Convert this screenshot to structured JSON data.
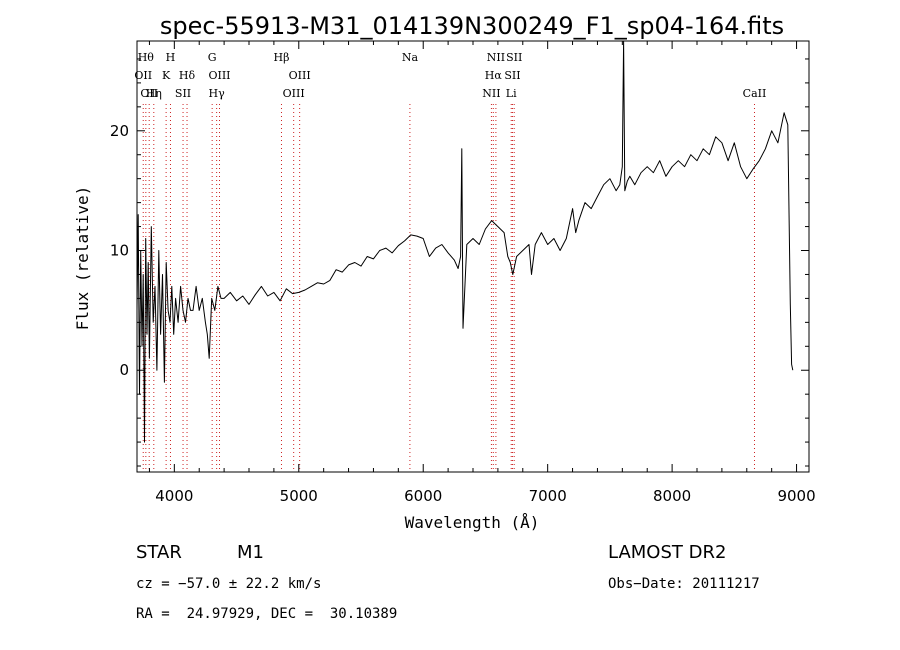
{
  "chart_data": {
    "type": "line",
    "title": "spec-55913-M31_014139N300249_F1_sp04-164.fits",
    "xlabel": "Wavelength (Å)",
    "ylabel": "Flux (relative)",
    "xlim": [
      3700,
      9100
    ],
    "ylim": [
      -8.5,
      27.5
    ],
    "x_ticks": [
      4000,
      5000,
      6000,
      7000,
      8000,
      9000
    ],
    "x_tick_labels": [
      "4000",
      "5000",
      "6000",
      "7000",
      "8000",
      "9000"
    ],
    "y_ticks": [
      0,
      10,
      20
    ],
    "y_tick_labels": [
      "0",
      "10",
      "20"
    ],
    "grid": false,
    "colors": {
      "spectrum": "#000000",
      "line_markers": "#cc2222",
      "axes": "#000000"
    },
    "spectral_lines": [
      {
        "wavelength": 3750,
        "label": "OII",
        "row": 2
      },
      {
        "wavelength": 3771,
        "label": "Hθ",
        "row": 1
      },
      {
        "wavelength": 3798,
        "label": "OII",
        "row": 3
      },
      {
        "wavelength": 3835,
        "label": "Hη",
        "row": 3
      },
      {
        "wavelength": 3934,
        "label": "K",
        "row": 2
      },
      {
        "wavelength": 3969,
        "label": "H",
        "row": 1
      },
      {
        "wavelength": 4070,
        "label": "SII",
        "row": 3
      },
      {
        "wavelength": 4102,
        "label": "Hδ",
        "row": 2
      },
      {
        "wavelength": 4304,
        "label": "G",
        "row": 1
      },
      {
        "wavelength": 4340,
        "label": "Hγ",
        "row": 3
      },
      {
        "wavelength": 4363,
        "label": "OIII",
        "row": 2
      },
      {
        "wavelength": 4861,
        "label": "Hβ",
        "row": 1
      },
      {
        "wavelength": 4959,
        "label": "OIII",
        "row": 3
      },
      {
        "wavelength": 5007,
        "label": "OIII",
        "row": 2
      },
      {
        "wavelength": 5893,
        "label": "Na",
        "row": 1
      },
      {
        "wavelength": 6548,
        "label": "NII",
        "row": 3
      },
      {
        "wavelength": 6563,
        "label": "Hα",
        "row": 2
      },
      {
        "wavelength": 6584,
        "label": "NII",
        "row": 1
      },
      {
        "wavelength": 6707,
        "label": "Li",
        "row": 3
      },
      {
        "wavelength": 6717,
        "label": "SII",
        "row": 2
      },
      {
        "wavelength": 6731,
        "label": "SII",
        "row": 1
      },
      {
        "wavelength": 8662,
        "label": "CaII",
        "row": 3
      }
    ],
    "series": [
      {
        "x": [
          3700,
          3710,
          3720,
          3730,
          3740,
          3750,
          3760,
          3770,
          3780,
          3790,
          3800,
          3815,
          3830,
          3845,
          3860,
          3875,
          3890,
          3905,
          3920,
          3935,
          3950,
          3965,
          3980,
          3995,
          4010,
          4030,
          4050,
          4070,
          4090,
          4110,
          4130,
          4150,
          4175,
          4200,
          4225,
          4250,
          4265,
          4280,
          4300,
          4325,
          4350,
          4375,
          4400,
          4450,
          4500,
          4550,
          4600,
          4650,
          4700,
          4750,
          4800,
          4850,
          4900,
          4950,
          5000,
          5050,
          5100,
          5150,
          5200,
          5250,
          5300,
          5350,
          5400,
          5450,
          5500,
          5550,
          5600,
          5650,
          5700,
          5750,
          5800,
          5850,
          5900,
          5950,
          6000,
          6050,
          6100,
          6150,
          6200,
          6250,
          6280,
          6300,
          6310,
          6320,
          6350,
          6400,
          6450,
          6500,
          6550,
          6600,
          6650,
          6680,
          6700,
          6720,
          6750,
          6800,
          6850,
          6870,
          6900,
          6950,
          7000,
          7050,
          7100,
          7150,
          7200,
          7225,
          7250,
          7300,
          7350,
          7400,
          7450,
          7500,
          7550,
          7580,
          7600,
          7610,
          7620,
          7640,
          7660,
          7700,
          7750,
          7800,
          7850,
          7900,
          7950,
          8000,
          8050,
          8100,
          8150,
          8200,
          8250,
          8300,
          8350,
          8400,
          8450,
          8500,
          8550,
          8600,
          8650,
          8700,
          8750,
          8800,
          8850,
          8900,
          8930,
          8950,
          8960,
          8970
        ],
        "y": [
          5,
          13,
          -2,
          10,
          2,
          8,
          -6,
          11,
          3,
          9,
          1,
          12,
          4,
          7,
          0,
          10,
          3,
          8,
          -1,
          9,
          5,
          4,
          7,
          3,
          6,
          4,
          7,
          5,
          4,
          6,
          5,
          5,
          7,
          5,
          6,
          4,
          3,
          1,
          6,
          5,
          7,
          6,
          6,
          6.5,
          5.8,
          6.2,
          5.5,
          6.3,
          7,
          6.2,
          6.5,
          5.8,
          6.8,
          6.4,
          6.5,
          6.7,
          7,
          7.3,
          7.2,
          7.5,
          8.4,
          8.2,
          8.8,
          9,
          8.7,
          9.5,
          9.3,
          10,
          10.2,
          9.8,
          10.4,
          10.8,
          11.3,
          11.2,
          11,
          9.5,
          10.2,
          10.5,
          9.8,
          9.2,
          8.5,
          9.5,
          18.5,
          3.5,
          10.5,
          11,
          10.5,
          11.8,
          12.5,
          12,
          11.5,
          9.5,
          9,
          8,
          9.5,
          10,
          10.5,
          8,
          10.5,
          11.5,
          10.5,
          11,
          10,
          11,
          13.5,
          11.5,
          12.5,
          14,
          13.5,
          14.5,
          15.5,
          16,
          15,
          15.5,
          17,
          27.5,
          15,
          15.8,
          16.2,
          15.5,
          16.5,
          17,
          16.5,
          17.5,
          16.2,
          17,
          17.5,
          17,
          18,
          17.5,
          18.5,
          18,
          19.5,
          19,
          17.5,
          19,
          17,
          16,
          16.8,
          17.5,
          18.5,
          20,
          19,
          21.5,
          20.5,
          5.5,
          0.5,
          0
        ]
      }
    ]
  },
  "info": {
    "object_class": "STAR",
    "subclass": "M1",
    "survey": "LAMOST DR2",
    "cz_text": "cz = −57.0 ± 22.2 km/s",
    "obs_date_text": "Obs−Date: 20111217",
    "coords_text": "RA =  24.97929, DEC =  30.10389"
  }
}
